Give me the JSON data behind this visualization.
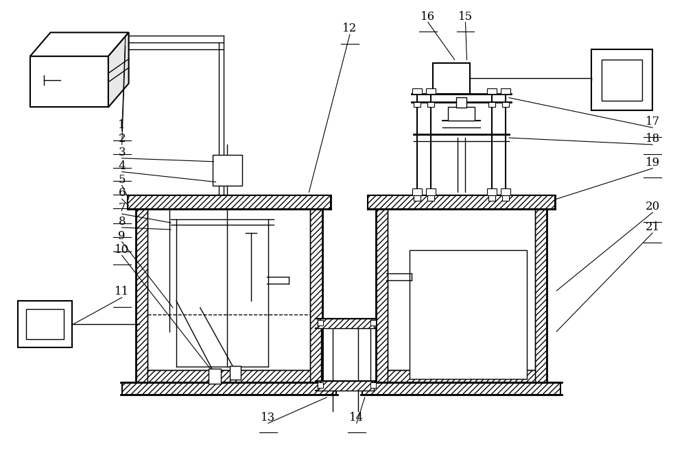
{
  "fig_width": 10.0,
  "fig_height": 6.64,
  "dpi": 100,
  "bg_color": "#ffffff",
  "line_color": "#000000"
}
